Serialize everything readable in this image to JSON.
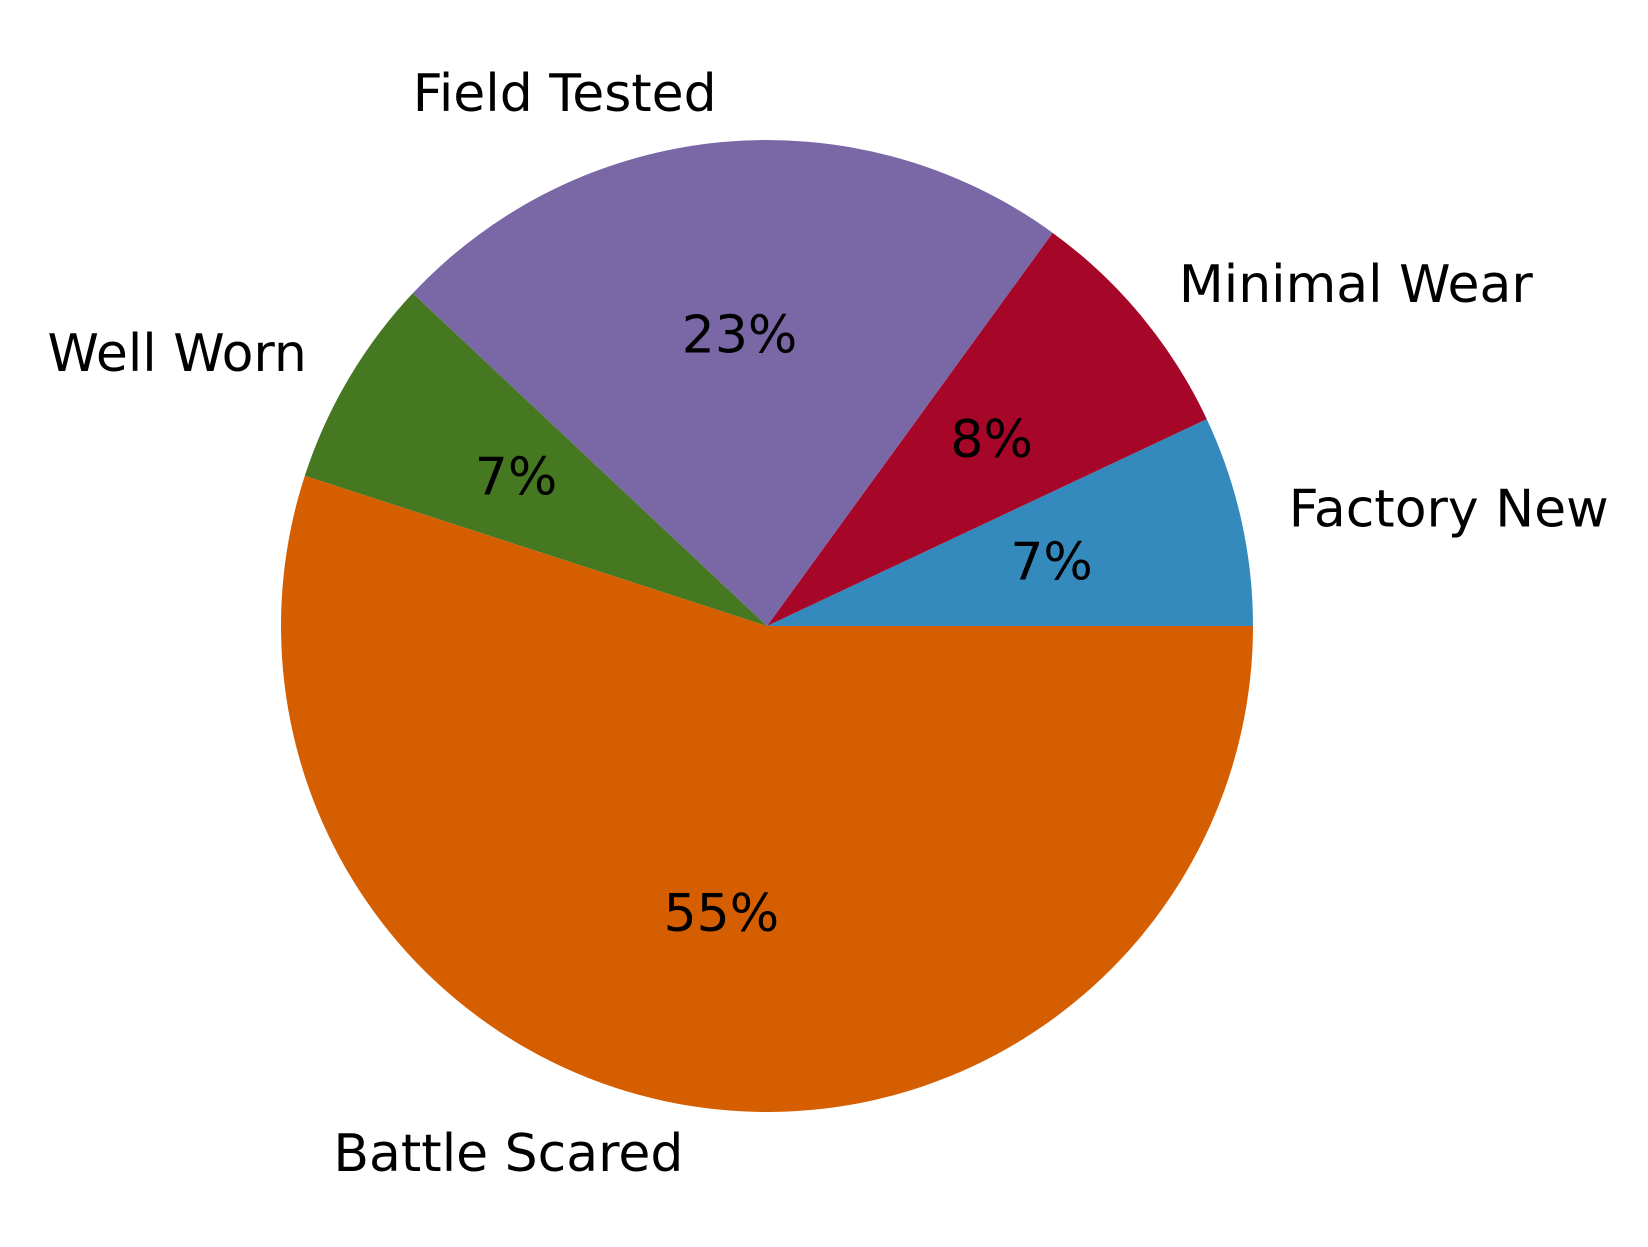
{
  "chart_data": {
    "type": "pie",
    "title": "",
    "categories": [
      "Factory New",
      "Minimal Wear",
      "Field Tested",
      "Well Worn",
      "Battle Scared"
    ],
    "values": [
      7,
      8,
      23,
      7,
      55
    ],
    "value_labels": [
      "7%",
      "8%",
      "23%",
      "7%",
      "55%"
    ],
    "colors": [
      "#348abd",
      "#a60628",
      "#7a68a6",
      "#467821",
      "#d55e00"
    ],
    "start_angle_deg": 0,
    "direction": "counterclockwise",
    "legend": "none"
  }
}
